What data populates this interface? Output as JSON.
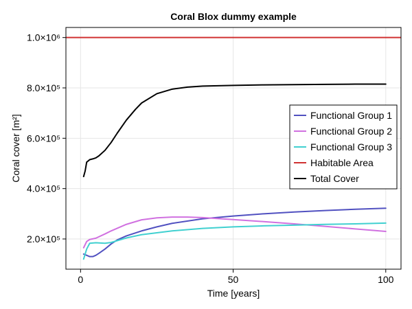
{
  "chart_data": {
    "type": "line",
    "title": "Coral Blox dummy example",
    "xlabel": "Time [years]",
    "ylabel": "Coral cover [m²]",
    "xlim": [
      -4.8,
      105
    ],
    "ylim": [
      80000,
      1040000
    ],
    "x_ticks": [
      {
        "value": 0,
        "label": "0"
      },
      {
        "value": 50,
        "label": "50"
      },
      {
        "value": 100,
        "label": "100"
      }
    ],
    "y_ticks": [
      {
        "value": 200000,
        "label": "2.0×10⁵"
      },
      {
        "value": 400000,
        "label": "4.0×10⁵"
      },
      {
        "value": 600000,
        "label": "6.0×10⁵"
      },
      {
        "value": 800000,
        "label": "8.0×10⁵"
      },
      {
        "value": 1000000,
        "label": "1.0×10⁶"
      }
    ],
    "grid": true,
    "legend_position": "right",
    "series": [
      {
        "name": "Functional Group 1",
        "color": "#5050c0",
        "points": [
          [
            1,
            140000
          ],
          [
            2,
            135000
          ],
          [
            3,
            130000
          ],
          [
            4,
            130000
          ],
          [
            5,
            135000
          ],
          [
            6,
            143000
          ],
          [
            8,
            160000
          ],
          [
            10,
            180000
          ],
          [
            12,
            196000
          ],
          [
            15,
            212000
          ],
          [
            20,
            232000
          ],
          [
            25,
            248000
          ],
          [
            30,
            262000
          ],
          [
            40,
            280000
          ],
          [
            50,
            291000
          ],
          [
            60,
            300000
          ],
          [
            70,
            307000
          ],
          [
            80,
            313000
          ],
          [
            90,
            318000
          ],
          [
            100,
            322000
          ]
        ]
      },
      {
        "name": "Functional Group 2",
        "color": "#d070e0",
        "points": [
          [
            1,
            165000
          ],
          [
            2,
            190000
          ],
          [
            3,
            198000
          ],
          [
            5,
            203000
          ],
          [
            8,
            220000
          ],
          [
            10,
            232000
          ],
          [
            15,
            258000
          ],
          [
            20,
            276000
          ],
          [
            25,
            284000
          ],
          [
            30,
            287000
          ],
          [
            35,
            287000
          ],
          [
            40,
            285000
          ],
          [
            50,
            277000
          ],
          [
            60,
            269000
          ],
          [
            70,
            260000
          ],
          [
            80,
            250000
          ],
          [
            90,
            240000
          ],
          [
            100,
            230000
          ]
        ]
      },
      {
        "name": "Functional Group 3",
        "color": "#40d0d0",
        "points": [
          [
            1,
            120000
          ],
          [
            2,
            160000
          ],
          [
            3,
            183000
          ],
          [
            5,
            185000
          ],
          [
            8,
            183000
          ],
          [
            10,
            186000
          ],
          [
            15,
            204000
          ],
          [
            20,
            217000
          ],
          [
            30,
            232000
          ],
          [
            40,
            242000
          ],
          [
            50,
            248000
          ],
          [
            60,
            252000
          ],
          [
            70,
            255000
          ],
          [
            80,
            258000
          ],
          [
            90,
            260000
          ],
          [
            100,
            263000
          ]
        ]
      },
      {
        "name": "Habitable Area",
        "color": "#d03030",
        "points": [
          [
            -4.8,
            1000000
          ],
          [
            105,
            1000000
          ]
        ]
      },
      {
        "name": "Total Cover",
        "color": "#000000",
        "points": [
          [
            1,
            448000
          ],
          [
            1.5,
            470000
          ],
          [
            2,
            505000
          ],
          [
            3,
            515000
          ],
          [
            4,
            518000
          ],
          [
            5,
            522000
          ],
          [
            6,
            530000
          ],
          [
            8,
            552000
          ],
          [
            10,
            583000
          ],
          [
            12,
            620000
          ],
          [
            15,
            672000
          ],
          [
            18,
            715000
          ],
          [
            20,
            740000
          ],
          [
            25,
            777000
          ],
          [
            30,
            795000
          ],
          [
            35,
            803000
          ],
          [
            40,
            807000
          ],
          [
            50,
            810000
          ],
          [
            60,
            812000
          ],
          [
            70,
            813000
          ],
          [
            80,
            814000
          ],
          [
            90,
            815000
          ],
          [
            100,
            815000
          ]
        ]
      }
    ]
  }
}
